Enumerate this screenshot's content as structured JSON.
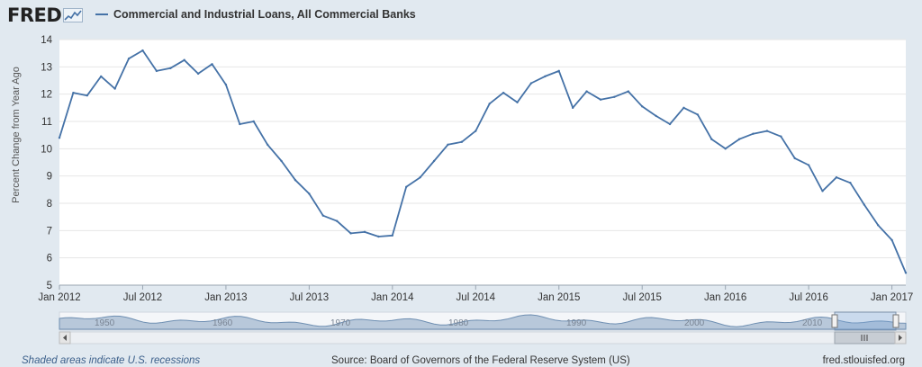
{
  "logo": {
    "text": "FRED",
    "icon": "graph-line-icon"
  },
  "legend": {
    "series_name": "Commercial and Industrial Loans, All Commercial Banks"
  },
  "footer": {
    "recessions_note": "Shaded areas indicate U.S. recessions",
    "source": "Source: Board of Governors of the Federal Reserve System (US)",
    "site": "fred.stlouisfed.org"
  },
  "navigator": {
    "decade_labels": [
      "1950",
      "1960",
      "1970",
      "1980",
      "1990",
      "2000",
      "2010"
    ],
    "scroll_left_icon": "chevron-left-icon",
    "scroll_right_icon": "chevron-right-icon",
    "grip_icon": "grip-icon"
  },
  "chart_data": {
    "type": "line",
    "title": "",
    "xlabel": "",
    "ylabel": "Percent Change from Year Ago",
    "ylim": [
      5,
      14
    ],
    "yticks": [
      5,
      6,
      7,
      8,
      9,
      10,
      11,
      12,
      13,
      14
    ],
    "xlim": [
      "2012-01",
      "2017-02"
    ],
    "xticks": [
      {
        "date": "2012-01",
        "label": "Jan 2012"
      },
      {
        "date": "2012-07",
        "label": "Jul 2012"
      },
      {
        "date": "2013-01",
        "label": "Jan 2013"
      },
      {
        "date": "2013-07",
        "label": "Jul 2013"
      },
      {
        "date": "2014-01",
        "label": "Jan 2014"
      },
      {
        "date": "2014-07",
        "label": "Jul 2014"
      },
      {
        "date": "2015-01",
        "label": "Jan 2015"
      },
      {
        "date": "2015-07",
        "label": "Jul 2015"
      },
      {
        "date": "2016-01",
        "label": "Jan 2016"
      },
      {
        "date": "2016-07",
        "label": "Jul 2016"
      },
      {
        "date": "2017-01",
        "label": "Jan 2017"
      }
    ],
    "grid": true,
    "legend_position": "top-left",
    "color": "#4572a7",
    "series": [
      {
        "name": "Commercial and Industrial Loans, All Commercial Banks",
        "x": [
          "2012-01",
          "2012-02",
          "2012-03",
          "2012-04",
          "2012-05",
          "2012-06",
          "2012-07",
          "2012-08",
          "2012-09",
          "2012-10",
          "2012-11",
          "2012-12",
          "2013-01",
          "2013-02",
          "2013-03",
          "2013-04",
          "2013-05",
          "2013-06",
          "2013-07",
          "2013-08",
          "2013-09",
          "2013-10",
          "2013-11",
          "2013-12",
          "2014-01",
          "2014-02",
          "2014-03",
          "2014-04",
          "2014-05",
          "2014-06",
          "2014-07",
          "2014-08",
          "2014-09",
          "2014-10",
          "2014-11",
          "2014-12",
          "2015-01",
          "2015-02",
          "2015-03",
          "2015-04",
          "2015-05",
          "2015-06",
          "2015-07",
          "2015-08",
          "2015-09",
          "2015-10",
          "2015-11",
          "2015-12",
          "2016-01",
          "2016-02",
          "2016-03",
          "2016-04",
          "2016-05",
          "2016-06",
          "2016-07",
          "2016-08",
          "2016-09",
          "2016-10",
          "2016-11",
          "2016-12",
          "2017-01",
          "2017-02"
        ],
        "values": [
          10.4,
          12.05,
          11.95,
          12.65,
          12.2,
          13.3,
          13.6,
          12.85,
          12.95,
          13.25,
          12.75,
          13.1,
          12.35,
          10.9,
          11.0,
          10.15,
          9.55,
          8.85,
          8.35,
          7.55,
          7.35,
          6.9,
          6.95,
          6.78,
          6.82,
          8.6,
          8.95,
          9.55,
          10.15,
          10.25,
          10.65,
          11.65,
          12.05,
          11.7,
          12.4,
          12.65,
          12.85,
          11.5,
          12.1,
          11.8,
          11.9,
          12.1,
          11.55,
          11.2,
          10.9,
          11.5,
          11.25,
          10.35,
          10.0,
          10.35,
          10.55,
          10.65,
          10.45,
          9.65,
          9.4,
          8.45,
          8.95,
          8.75,
          7.95,
          7.2,
          6.65,
          5.45
        ]
      }
    ]
  }
}
